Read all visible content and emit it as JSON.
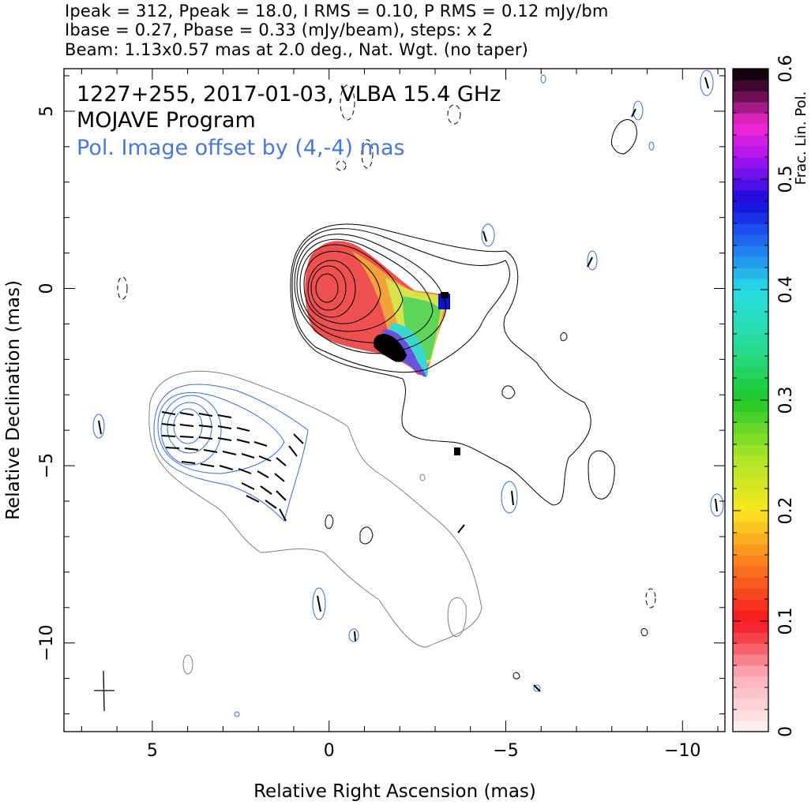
{
  "header": {
    "line1": "Ipeak = 312, Ppeak = 18.0, I RMS = 0.10, P RMS = 0.12 mJy/bm",
    "line2": "Ibase = 0.27, Pbase = 0.33 (mJy/beam), steps: x 2",
    "line3": "Beam: 1.13x0.57 mas at 2.0 deg., Nat. Wgt. (no taper)"
  },
  "annotations": {
    "source": "1227+255, 2017-01-03, VLBA 15.4 GHz",
    "program": "MOJAVE Program",
    "offset_note": "Pol. Image offset by (4,-4) mas"
  },
  "colors": {
    "total_intensity_contour": "#000000",
    "pol_contour": "#3a6fd8",
    "pol_offset_text": "#4a78d8",
    "faint_contour": "#808080"
  },
  "chart_data": {
    "type": "heatmap",
    "title": "",
    "xlabel": "Relative Right Ascension (mas)",
    "ylabel": "Relative Declination (mas)",
    "xlim": [
      7.5,
      -11.2
    ],
    "ylim": [
      -12.5,
      6.2
    ],
    "xticks": [
      5,
      0,
      -5,
      -10
    ],
    "xtick_labels": [
      "5",
      "0",
      "−5",
      "−10"
    ],
    "yticks": [
      5,
      0,
      -5,
      -10
    ],
    "ytick_labels": [
      "5",
      "0",
      "−5",
      "−10"
    ],
    "colorbar": {
      "label": "Frac. Lin. Pol.",
      "min": 0,
      "max": 0.6,
      "ticks": [
        0,
        0.1,
        0.2,
        0.3,
        0.4,
        0.5,
        0.6
      ],
      "tick_labels": [
        "0",
        "0.1",
        "0.2",
        "0.3",
        "0.4",
        "0.5",
        "0.6"
      ]
    },
    "core_position_mas": [
      0,
      0
    ],
    "pol_image_offset_mas": [
      4,
      -4
    ],
    "beam": {
      "major_mas": 1.13,
      "minor_mas": 0.57,
      "pa_deg": 2.0
    },
    "stokes_i_contours_mJy_per_beam": [
      0.27,
      0.54,
      1.08,
      2.16,
      4.32,
      8.64,
      17.28,
      34.56,
      69.12,
      138.24,
      276.48
    ],
    "peak_I_mJy_per_beam": 312,
    "peak_P_mJy_per_beam": 18.0
  }
}
